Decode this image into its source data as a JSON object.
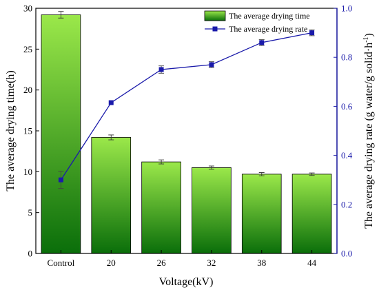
{
  "chart_data": {
    "type": "bar",
    "categories": [
      "Control",
      "20",
      "26",
      "32",
      "38",
      "44"
    ],
    "xlabel": "Voltage(kV)",
    "y_left": {
      "label": "The average drying time(h)",
      "ylim": [
        0,
        30
      ],
      "ticks": [
        0,
        5,
        10,
        15,
        20,
        25,
        30
      ],
      "tick_labels": [
        "0",
        "5",
        "10",
        "15",
        "20",
        "25",
        "30"
      ]
    },
    "y_right": {
      "label_main": "The average drying rate (g water/g solid·h",
      "label_sup": "-1",
      "label_close": ")",
      "ylim": [
        0,
        1.0
      ],
      "ticks": [
        0.0,
        0.2,
        0.4,
        0.6,
        0.8,
        1.0
      ],
      "tick_labels": [
        "0.0",
        "0.2",
        "0.4",
        "0.6",
        "0.8",
        "1.0"
      ],
      "color": "#1a1aaa"
    },
    "series": [
      {
        "name": "The average drying time",
        "type": "bar",
        "axis": "left",
        "values": [
          29.2,
          14.2,
          11.2,
          10.5,
          9.7,
          9.7
        ],
        "errors": [
          0.4,
          0.3,
          0.25,
          0.2,
          0.2,
          0.15
        ],
        "color_top": "#9be84a",
        "color_bottom": "#0a6e0a"
      },
      {
        "name": "The average drying rate",
        "type": "line",
        "axis": "right",
        "values": [
          0.3,
          0.615,
          0.75,
          0.77,
          0.86,
          0.9
        ],
        "errors": [
          0.035,
          0.0,
          0.015,
          0.012,
          0.012,
          0.012
        ],
        "color": "#1a1aaa"
      }
    ],
    "legend_position": "top-right"
  }
}
